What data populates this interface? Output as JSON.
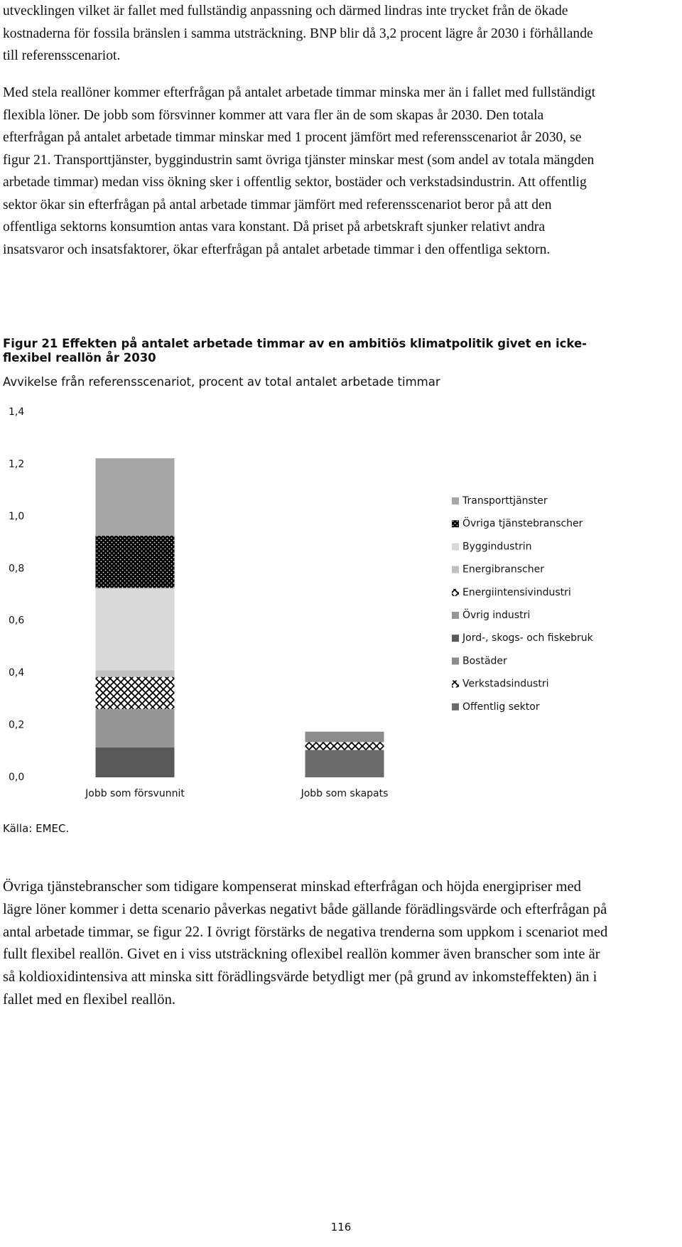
{
  "paragraphs_before": [
    "utvecklingen vilket är fallet med fullständig anpassning och därmed lindras inte trycket från de ökade kostnaderna för fossila bränslen i samma utsträckning. BNP blir då 3,2 procent lägre år 2030 i förhållande till referensscenariot.",
    "Med stela reallöner kommer efterfrågan på antalet arbetade timmar minska mer än i fallet med fullständigt flexibla löner. De jobb som försvinner kommer att vara fler än de som skapas år 2030. Den totala efterfrågan på antalet arbetade timmar minskar med 1 procent jämfört med referensscenariot år 2030, se figur 21. Transporttjänster, byggindustrin samt övriga tjänster minskar mest (som andel av totala mängden arbetade timmar) medan viss ökning sker i offentlig sektor, bostäder och verkstadsindustrin. Att offentlig sektor ökar sin efterfrågan på antal arbetade timmar jämfört med referensscenariot beror på att den offentliga sektorns konsumtion antas vara konstant. Då priset på arbetskraft sjunker relativt andra insatsvaror och insatsfaktorer, ökar efterfrågan på antalet arbetade timmar i den offentliga sektorn."
  ],
  "chart_data": {
    "type": "stacked_bar",
    "title": "Figur 21 Effekten på antalet arbetade timmar av en ambitiös klimatpolitik givet en icke-flexibel reallön år 2030",
    "subtitle": "Avvikelse från referensscenariot, procent av total antalet arbetade timmar",
    "categories": [
      "Jobb som försvunnit",
      "Jobb som skapats"
    ],
    "series": [
      {
        "name": "Offentlig sektor",
        "color": "#6b6b6b",
        "values": [
          0,
          0.105
        ]
      },
      {
        "name": "Verkstadsindustri",
        "color": "#000000",
        "pattern": "zigzag",
        "values": [
          0,
          0.03
        ]
      },
      {
        "name": "Bostäder",
        "color": "#8c8c8c",
        "values": [
          0,
          0.04
        ]
      },
      {
        "name": "Jord-, skogs- och fiskebruk",
        "color": "#595959",
        "values": [
          0.115,
          0
        ]
      },
      {
        "name": "Övrig industri",
        "color": "#969696",
        "values": [
          0.147,
          0
        ]
      },
      {
        "name": "Energiintensivindustri",
        "color": "#000000",
        "pattern": "zigzag",
        "values": [
          0.123,
          0
        ]
      },
      {
        "name": "Energibranscher",
        "color": "#bfbfbf",
        "values": [
          0.025,
          0
        ]
      },
      {
        "name": "Byggindustrin",
        "color": "#d9d9d9",
        "values": [
          0.316,
          0
        ]
      },
      {
        "name": "Övriga tjänstebranscher",
        "color": "#000000",
        "pattern": "dots",
        "values": [
          0.2,
          0
        ]
      },
      {
        "name": "Transporttjänster",
        "color": "#a6a6a6",
        "values": [
          0.297,
          0
        ]
      }
    ],
    "ylim": [
      0,
      1.4
    ],
    "yticks": [
      {
        "value": 0,
        "label": "0,0"
      },
      {
        "value": 0.2,
        "label": "0,2"
      },
      {
        "value": 0.4,
        "label": "0,4"
      },
      {
        "value": 0.6,
        "label": "0,6"
      },
      {
        "value": 0.8,
        "label": "0,8"
      },
      {
        "value": 1.0,
        "label": "1,0"
      },
      {
        "value": 1.2,
        "label": "1,2"
      },
      {
        "value": 1.4,
        "label": "1,4"
      }
    ],
    "grid": false,
    "legend": "right"
  },
  "source": "Källa: EMEC.",
  "paragraphs_after": [
    "Övriga tjänstebranscher som tidigare kompenserat minskad efterfrågan och höjda energipriser med lägre löner kommer i detta scenario påverkas negativt både gällande förädlingsvärde och efterfrågan på antal arbetade timmar, se figur 22. I övrigt förstärks de negativa trenderna som uppkom i scenariot med fullt flexibel reallön. Givet en i viss utsträckning oflexibel reallön kommer även branscher som inte är så koldioxidintensiva att minska sitt förädlingsvärde betydligt mer (på grund av inkomsteffekten) än i fallet med en flexibel reallön."
  ],
  "page_number": "116"
}
